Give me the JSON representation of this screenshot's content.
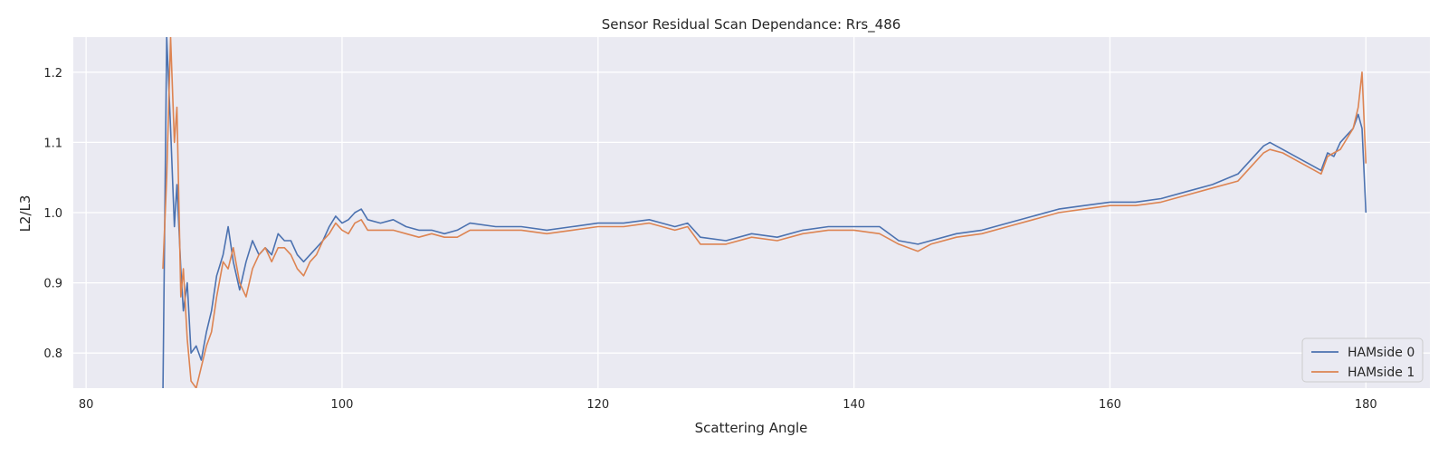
{
  "chart_data": {
    "type": "line",
    "title": "Sensor Residual Scan Dependance: Rrs_486",
    "xlabel": "Scattering Angle",
    "ylabel": "L2/L3",
    "xlim": [
      79,
      185
    ],
    "ylim": [
      0.75,
      1.25
    ],
    "xticks": [
      80,
      100,
      120,
      140,
      160,
      180
    ],
    "xtick_labels": [
      "80",
      "100",
      "120",
      "140",
      "160",
      "180"
    ],
    "yticks": [
      0.8,
      0.9,
      1.0,
      1.1,
      1.2
    ],
    "ytick_labels": [
      "0.8",
      "0.9",
      "1.0",
      "1.1",
      "1.2"
    ],
    "grid": true,
    "legend_position": "lower-right",
    "series": [
      {
        "name": "HAMside 0",
        "color": "#4c72b0",
        "x": [
          86.0,
          86.3,
          86.6,
          86.9,
          87.1,
          87.4,
          87.6,
          87.9,
          88.2,
          88.6,
          89.0,
          89.4,
          89.8,
          90.2,
          90.7,
          91.1,
          91.5,
          92.0,
          92.5,
          93.0,
          93.5,
          94.0,
          94.5,
          95.0,
          95.5,
          96.0,
          96.5,
          97.0,
          97.5,
          98.0,
          98.5,
          99.0,
          99.5,
          100.0,
          100.5,
          101.0,
          101.5,
          102.0,
          103.0,
          104.0,
          105.0,
          106.0,
          107.0,
          108.0,
          109.0,
          110.0,
          112.0,
          114.0,
          116.0,
          118.0,
          120.0,
          122.0,
          124.0,
          125.0,
          126.0,
          127.0,
          128.0,
          130.0,
          132.0,
          134.0,
          136.0,
          138.0,
          140.0,
          142.0,
          143.5,
          145.0,
          146.0,
          148.0,
          150.0,
          152.0,
          154.0,
          156.0,
          158.0,
          160.0,
          162.0,
          164.0,
          166.0,
          168.0,
          170.0,
          171.0,
          172.0,
          172.5,
          173.5,
          174.5,
          175.5,
          176.5,
          177.0,
          177.5,
          178.0,
          178.5,
          179.0,
          179.4,
          179.7,
          180.0
        ],
        "values": [
          0.74,
          1.25,
          1.12,
          0.98,
          1.04,
          0.92,
          0.86,
          0.9,
          0.8,
          0.81,
          0.79,
          0.83,
          0.86,
          0.91,
          0.94,
          0.98,
          0.93,
          0.89,
          0.93,
          0.96,
          0.94,
          0.95,
          0.94,
          0.97,
          0.96,
          0.96,
          0.94,
          0.93,
          0.94,
          0.95,
          0.96,
          0.98,
          0.995,
          0.985,
          0.99,
          1.0,
          1.005,
          0.99,
          0.985,
          0.99,
          0.98,
          0.975,
          0.975,
          0.97,
          0.975,
          0.985,
          0.98,
          0.98,
          0.975,
          0.98,
          0.985,
          0.985,
          0.99,
          0.985,
          0.98,
          0.985,
          0.965,
          0.96,
          0.97,
          0.965,
          0.975,
          0.98,
          0.98,
          0.98,
          0.96,
          0.955,
          0.96,
          0.97,
          0.975,
          0.985,
          0.995,
          1.005,
          1.01,
          1.015,
          1.015,
          1.02,
          1.03,
          1.04,
          1.055,
          1.075,
          1.095,
          1.1,
          1.09,
          1.08,
          1.07,
          1.06,
          1.085,
          1.08,
          1.1,
          1.11,
          1.12,
          1.14,
          1.12,
          1.0
        ]
      },
      {
        "name": "HAMside 1",
        "color": "#dd8452",
        "x": [
          86.0,
          86.3,
          86.6,
          86.9,
          87.1,
          87.4,
          87.6,
          87.9,
          88.2,
          88.6,
          89.0,
          89.4,
          89.8,
          90.2,
          90.7,
          91.1,
          91.5,
          92.0,
          92.5,
          93.0,
          93.5,
          94.0,
          94.5,
          95.0,
          95.5,
          96.0,
          96.5,
          97.0,
          97.5,
          98.0,
          98.5,
          99.0,
          99.5,
          100.0,
          100.5,
          101.0,
          101.5,
          102.0,
          103.0,
          104.0,
          105.0,
          106.0,
          107.0,
          108.0,
          109.0,
          110.0,
          112.0,
          114.0,
          116.0,
          118.0,
          120.0,
          122.0,
          124.0,
          125.0,
          126.0,
          127.0,
          128.0,
          130.0,
          132.0,
          134.0,
          136.0,
          138.0,
          140.0,
          142.0,
          143.5,
          145.0,
          146.0,
          148.0,
          150.0,
          152.0,
          154.0,
          156.0,
          158.0,
          160.0,
          162.0,
          164.0,
          166.0,
          168.0,
          170.0,
          171.0,
          172.0,
          172.5,
          173.5,
          174.5,
          175.5,
          176.5,
          177.0,
          177.5,
          178.0,
          178.5,
          179.0,
          179.4,
          179.7,
          180.0
        ],
        "values": [
          0.92,
          1.05,
          1.25,
          1.1,
          1.15,
          0.88,
          0.92,
          0.82,
          0.76,
          0.75,
          0.78,
          0.81,
          0.83,
          0.88,
          0.93,
          0.92,
          0.95,
          0.9,
          0.88,
          0.92,
          0.94,
          0.95,
          0.93,
          0.95,
          0.95,
          0.94,
          0.92,
          0.91,
          0.93,
          0.94,
          0.96,
          0.97,
          0.985,
          0.975,
          0.97,
          0.985,
          0.99,
          0.975,
          0.975,
          0.975,
          0.97,
          0.965,
          0.97,
          0.965,
          0.965,
          0.975,
          0.975,
          0.975,
          0.97,
          0.975,
          0.98,
          0.98,
          0.985,
          0.98,
          0.975,
          0.98,
          0.955,
          0.955,
          0.965,
          0.96,
          0.97,
          0.975,
          0.975,
          0.97,
          0.955,
          0.945,
          0.955,
          0.965,
          0.97,
          0.98,
          0.99,
          1.0,
          1.005,
          1.01,
          1.01,
          1.015,
          1.025,
          1.035,
          1.045,
          1.065,
          1.085,
          1.09,
          1.085,
          1.075,
          1.065,
          1.055,
          1.08,
          1.085,
          1.09,
          1.105,
          1.12,
          1.15,
          1.2,
          1.07
        ]
      }
    ]
  }
}
